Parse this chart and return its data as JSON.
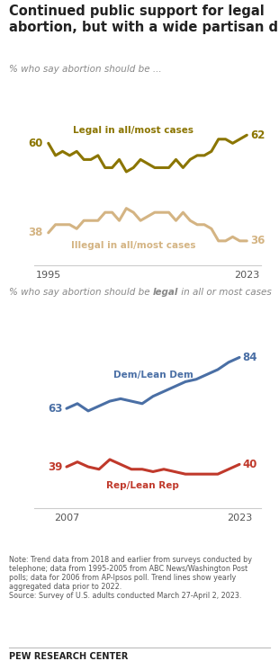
{
  "title": "Continued public support for legal\nabortion, but with a wide partisan divide",
  "subtitle1": "% who say abortion should be ...",
  "subtitle2_plain": "% who say abortion should be ",
  "subtitle2_bold": "legal",
  "subtitle2_rest": " in all or most cases",
  "chart1": {
    "legal_x": [
      1995,
      1996,
      1997,
      1998,
      1999,
      2000,
      2001,
      2002,
      2003,
      2004,
      2005,
      2006,
      2007,
      2008,
      2009,
      2010,
      2011,
      2012,
      2013,
      2014,
      2015,
      2016,
      2017,
      2018,
      2019,
      2020,
      2021,
      2022,
      2023
    ],
    "legal_y": [
      60,
      57,
      58,
      57,
      58,
      56,
      56,
      57,
      54,
      54,
      56,
      53,
      54,
      56,
      55,
      54,
      54,
      54,
      56,
      54,
      56,
      57,
      57,
      58,
      61,
      61,
      60,
      61,
      62
    ],
    "illegal_x": [
      1995,
      1996,
      1997,
      1998,
      1999,
      2000,
      2001,
      2002,
      2003,
      2004,
      2005,
      2006,
      2007,
      2008,
      2009,
      2010,
      2011,
      2012,
      2013,
      2014,
      2015,
      2016,
      2017,
      2018,
      2019,
      2020,
      2021,
      2022,
      2023
    ],
    "illegal_y": [
      38,
      40,
      40,
      40,
      39,
      41,
      41,
      41,
      43,
      43,
      41,
      44,
      43,
      41,
      42,
      43,
      43,
      43,
      41,
      43,
      41,
      40,
      40,
      39,
      36,
      36,
      37,
      36,
      36
    ],
    "legal_color": "#8B7500",
    "illegal_color": "#D4B483",
    "label_legal": "Legal in all/most cases",
    "label_illegal": "Illegal in all/most cases",
    "start_label_legal": "60",
    "end_label_legal": "62",
    "start_label_illegal": "38",
    "end_label_illegal": "36",
    "xmin": 1993,
    "xmax": 2025,
    "ymin": 30,
    "ymax": 72
  },
  "chart2": {
    "dem_x": [
      2007,
      2008,
      2009,
      2010,
      2011,
      2012,
      2013,
      2014,
      2015,
      2016,
      2017,
      2018,
      2019,
      2020,
      2021,
      2022,
      2023
    ],
    "dem_y": [
      63,
      65,
      62,
      64,
      66,
      67,
      66,
      65,
      68,
      70,
      72,
      74,
      75,
      77,
      79,
      82,
      84
    ],
    "rep_x": [
      2007,
      2008,
      2009,
      2010,
      2011,
      2012,
      2013,
      2014,
      2015,
      2016,
      2017,
      2018,
      2019,
      2020,
      2021,
      2022,
      2023
    ],
    "rep_y": [
      39,
      41,
      39,
      38,
      42,
      40,
      38,
      38,
      37,
      38,
      37,
      36,
      36,
      36,
      36,
      38,
      40
    ],
    "dem_color": "#4A6FA5",
    "rep_color": "#C0392B",
    "label_dem": "Dem/Lean Dem",
    "label_rep": "Rep/Lean Rep",
    "start_label_dem": "63",
    "end_label_dem": "84",
    "start_label_rep": "39",
    "end_label_rep": "40",
    "xmin": 2004,
    "xmax": 2025,
    "ymin": 22,
    "ymax": 96
  },
  "note": "Note: Trend data from 2018 and earlier from surveys conducted by\ntelephone; data from 1995-2005 from ABC News/Washington Post\npolls; data for 2006 from AP-Ipsos poll. Trend lines show yearly\naggregated data prior to 2022.\nSource: Survey of U.S. adults conducted March 27-April 2, 2023.",
  "footer": "PEW RESEARCH CENTER",
  "bg_color": "#FFFFFF",
  "text_color": "#222222",
  "note_color": "#555555"
}
